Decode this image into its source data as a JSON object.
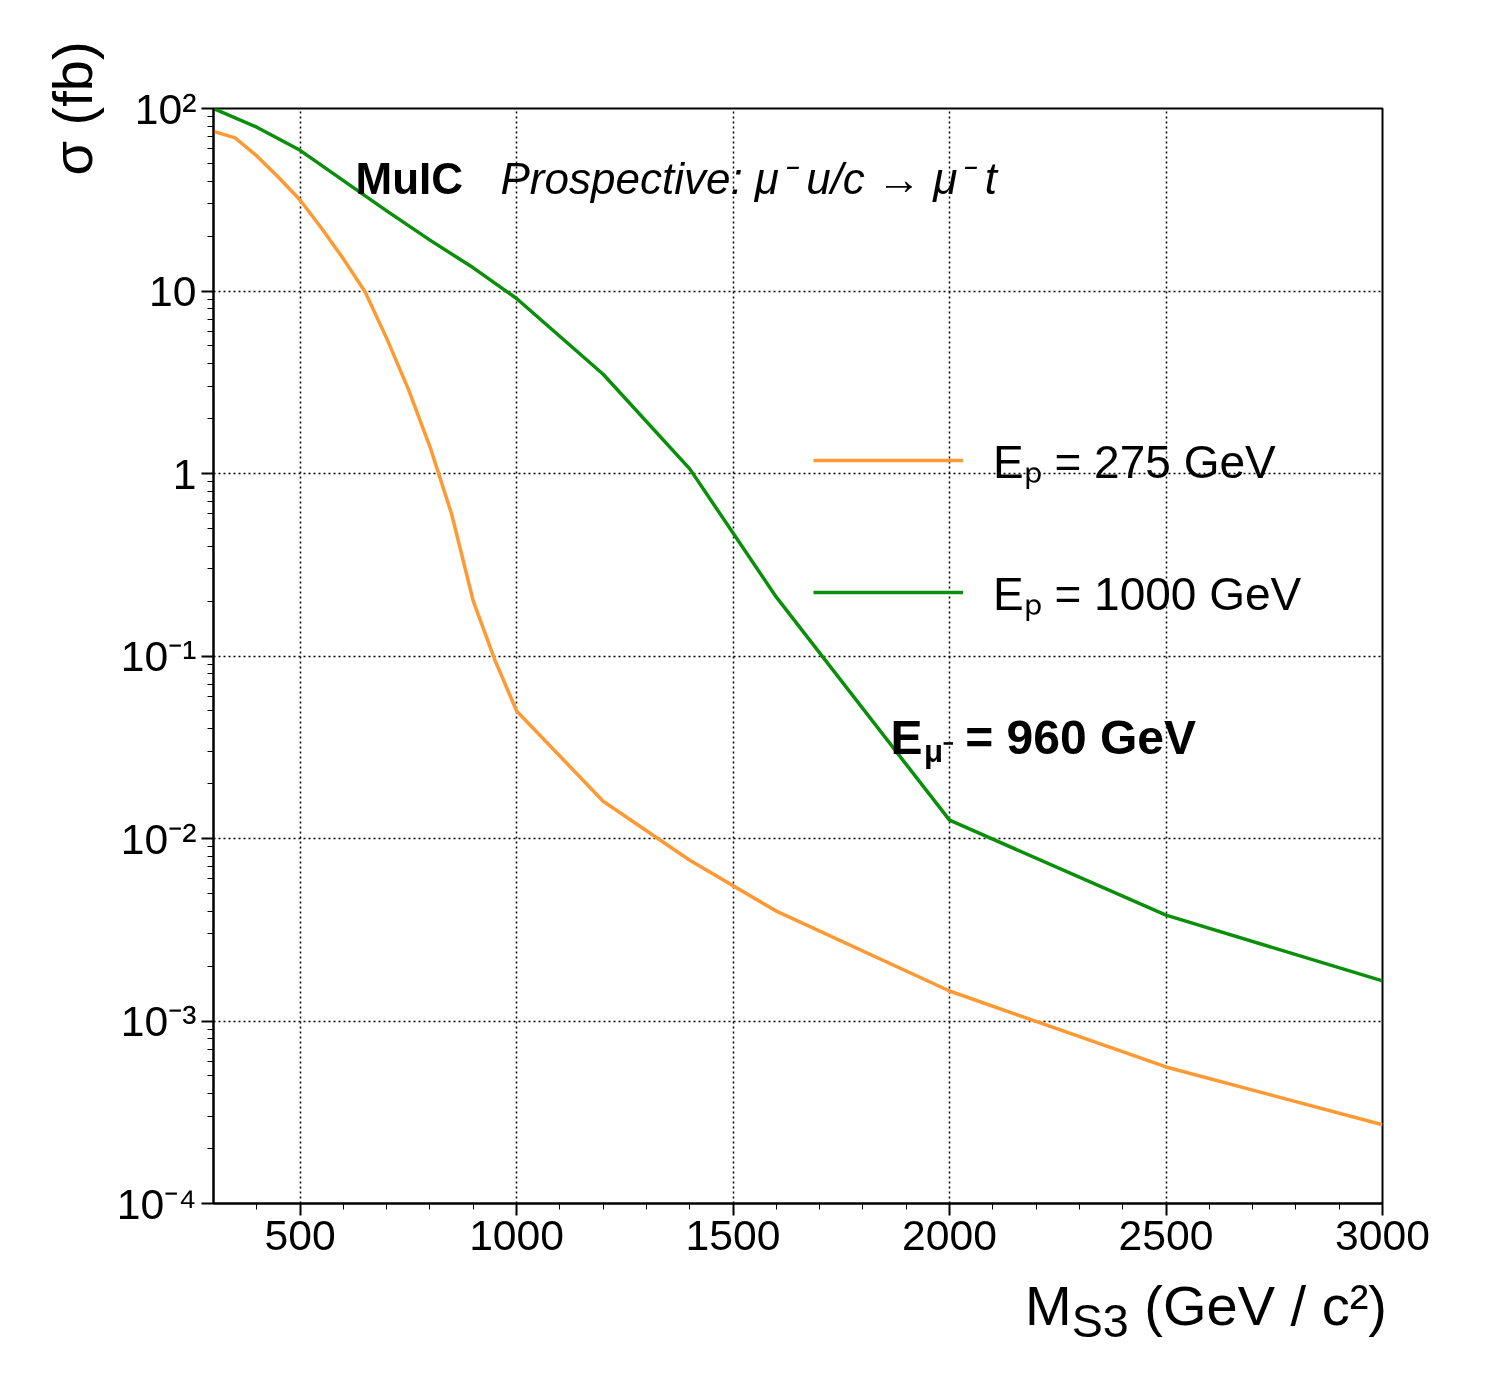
{
  "chart_data": {
    "type": "line",
    "xlabel": "M$_{S3}$ (GeV / c²)",
    "ylabel": "σ (fb)",
    "annotations": [
      "MuIC",
      "Prospective: μ⁻ u/c → μ⁻ t",
      "E$_{μ⁻}$ = 960 GeV"
    ],
    "log": "y",
    "grid": true,
    "legend": "right",
    "line_style": "solid",
    "marker": "none",
    "xlim": [
      300,
      3000
    ],
    "xticks": [
      500,
      1000,
      1500,
      2000,
      2500,
      3000
    ],
    "ylim": [
      0.0001,
      100
    ],
    "yticks": [
      {
        "value": 0.0001,
        "label": "10⁻⁴"
      },
      {
        "value": 0.001,
        "label": "10⁻³"
      },
      {
        "value": 0.01,
        "label": "10⁻²"
      },
      {
        "value": 0.1,
        "label": "10⁻¹"
      },
      1,
      10,
      {
        "value": 100,
        "label": "10²"
      }
    ],
    "series": [
      {
        "name": "Eₚ = 275 GeV",
        "color": "#ff9933",
        "x": [
          300,
          350,
          400,
          450,
          500,
          550,
          600,
          650,
          700,
          750,
          800,
          850,
          900,
          950,
          1000,
          1200,
          1400,
          1600,
          2000,
          2500,
          3000
        ],
        "values": [
          75,
          69,
          55,
          42,
          31.5,
          22,
          15,
          9.9,
          5.5,
          2.9,
          1.4,
          0.6,
          0.2,
          0.095,
          0.05,
          0.016,
          0.0076,
          0.004,
          0.00146,
          0.00056,
          0.00027
        ]
      },
      {
        "name": "Eₚ = 1000 GeV",
        "color": "#0a8f0a",
        "x": [
          300,
          400,
          500,
          700,
          800,
          900,
          1000,
          1200,
          1400,
          1600,
          2000,
          2500,
          3000
        ],
        "values": [
          100,
          79,
          59,
          27.5,
          19,
          13.4,
          9.1,
          3.5,
          1.06,
          0.21,
          0.0126,
          0.0038,
          0.00166
        ]
      }
    ]
  }
}
